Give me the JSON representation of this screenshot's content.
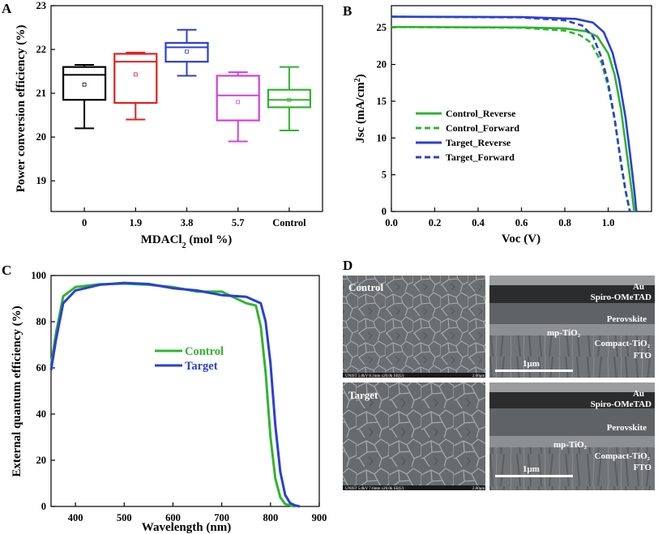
{
  "chart_data": [
    {
      "id": "A",
      "type": "box",
      "panel_label": "A",
      "xlabel": "MDACl₂ (mol %)",
      "ylabel": "Power conversion efficiency (%)",
      "ylim": [
        18.3,
        23
      ],
      "yticks": [
        19,
        20,
        21,
        22,
        23
      ],
      "categories": [
        "0",
        "1.9",
        "3.8",
        "5.7",
        "Control"
      ],
      "boxes": [
        {
          "category": "0",
          "color": "#000000",
          "min": 20.2,
          "q1": 20.85,
          "median": 21.42,
          "q3": 21.6,
          "max": 21.65,
          "mean": 21.2
        },
        {
          "category": "1.9",
          "color": "#e02020",
          "min": 20.4,
          "q1": 20.78,
          "median": 21.72,
          "q3": 21.9,
          "max": 21.93,
          "mean": 21.43
        },
        {
          "category": "3.8",
          "color": "#2a3fd6",
          "min": 21.4,
          "q1": 21.72,
          "median": 22.05,
          "q3": 22.15,
          "max": 22.45,
          "mean": 21.95
        },
        {
          "category": "5.7",
          "color": "#d040e0",
          "min": 19.9,
          "q1": 20.38,
          "median": 20.95,
          "q3": 21.4,
          "max": 21.48,
          "mean": 20.8
        },
        {
          "category": "Control",
          "color": "#2fb52f",
          "min": 20.15,
          "q1": 20.68,
          "median": 20.85,
          "q3": 21.08,
          "max": 21.6,
          "mean": 20.85
        }
      ]
    },
    {
      "id": "B",
      "type": "line",
      "panel_label": "B",
      "xlabel": "Voc (V)",
      "ylabel": "Jsc (mA/cm²)",
      "xlim": [
        0,
        1.2
      ],
      "ylim": [
        0,
        28
      ],
      "xticks": [
        "0.0",
        "0.2",
        "0.4",
        "0.6",
        "0.8",
        "1.0"
      ],
      "yticks": [
        0,
        5,
        10,
        15,
        20,
        25
      ],
      "series": [
        {
          "name": "Control_Reverse",
          "color": "#2fb52f",
          "dash": false,
          "x": [
            0,
            0.6,
            0.8,
            0.9,
            0.95,
            1.0,
            1.03,
            1.06,
            1.09,
            1.11,
            1.12
          ],
          "y": [
            25.1,
            25.05,
            24.9,
            24.5,
            23.8,
            21.5,
            18.6,
            13.8,
            7.0,
            2.5,
            0
          ]
        },
        {
          "name": "Control_Forward",
          "color": "#2fb52f",
          "dash": true,
          "x": [
            0,
            0.6,
            0.8,
            0.87,
            0.92,
            0.97,
            1.0,
            1.03,
            1.06,
            1.08,
            1.1
          ],
          "y": [
            25.1,
            25.0,
            24.6,
            24.0,
            23.0,
            20.2,
            17.0,
            12.5,
            6.3,
            2.8,
            0
          ]
        },
        {
          "name": "Target_Reverse",
          "color": "#2a3fd6",
          "dash": false,
          "x": [
            0,
            0.6,
            0.85,
            0.93,
            0.98,
            1.02,
            1.05,
            1.08,
            1.1,
            1.12,
            1.13
          ],
          "y": [
            26.5,
            26.45,
            26.2,
            25.7,
            24.4,
            21.6,
            18.0,
            12.8,
            8.0,
            3.0,
            0
          ]
        },
        {
          "name": "Target_Forward",
          "color": "#2a3fd6",
          "dash": true,
          "x": [
            0,
            0.6,
            0.8,
            0.88,
            0.93,
            0.97,
            1.0,
            1.03,
            1.06,
            1.08,
            1.1
          ],
          "y": [
            26.5,
            26.4,
            26.0,
            25.3,
            23.8,
            20.9,
            17.5,
            12.6,
            6.6,
            2.9,
            0
          ]
        }
      ]
    },
    {
      "id": "C",
      "type": "line",
      "panel_label": "C",
      "xlabel": "Wavelength (nm)",
      "ylabel": "External quantum efficiency (%)",
      "xlim": [
        350,
        900
      ],
      "ylim": [
        0,
        100
      ],
      "xticks": [
        400,
        500,
        600,
        700,
        800,
        900
      ],
      "yticks": [
        0,
        20,
        40,
        60,
        80,
        100
      ],
      "series": [
        {
          "name": "Control",
          "color": "#2fb52f",
          "x": [
            350,
            360,
            375,
            400,
            450,
            500,
            550,
            600,
            650,
            700,
            750,
            770,
            780,
            790,
            800,
            810,
            820,
            830,
            840,
            850
          ],
          "y": [
            61,
            75,
            91,
            95,
            96.2,
            96.5,
            96,
            95,
            93,
            93,
            88,
            87,
            78,
            58,
            30,
            12,
            4,
            1,
            0.5,
            0
          ]
        },
        {
          "name": "Target",
          "color": "#2a3fd6",
          "x": [
            350,
            360,
            375,
            400,
            450,
            500,
            550,
            600,
            650,
            700,
            750,
            780,
            790,
            800,
            810,
            820,
            830,
            840,
            850,
            860
          ],
          "y": [
            59,
            72,
            88,
            93.5,
            96,
            96.8,
            96.3,
            94.5,
            93.5,
            91.5,
            90.8,
            88,
            80,
            62,
            35,
            15,
            5,
            1.5,
            0.5,
            0
          ]
        }
      ]
    }
  ],
  "panels": {
    "a": {
      "label": "A"
    },
    "b": {
      "label": "B"
    },
    "c": {
      "label": "C"
    },
    "d": {
      "label": "D",
      "top_label": "Control",
      "bottom_label": "Target",
      "layers": [
        "Au",
        "Spiro-OMeTAD",
        "Perovskite",
        "mp-TiO₂",
        "Compact-TiO₂",
        "FTO"
      ],
      "scale_bar": "1μm",
      "sem_info_control": "UNIST 5.0kV 8.1mm x20.0k SE(U)",
      "sem_info_target": "UNIST 5.0kV 7.6mm x20.0k SE(U)",
      "sem_scale_small": "2.00μm"
    }
  }
}
